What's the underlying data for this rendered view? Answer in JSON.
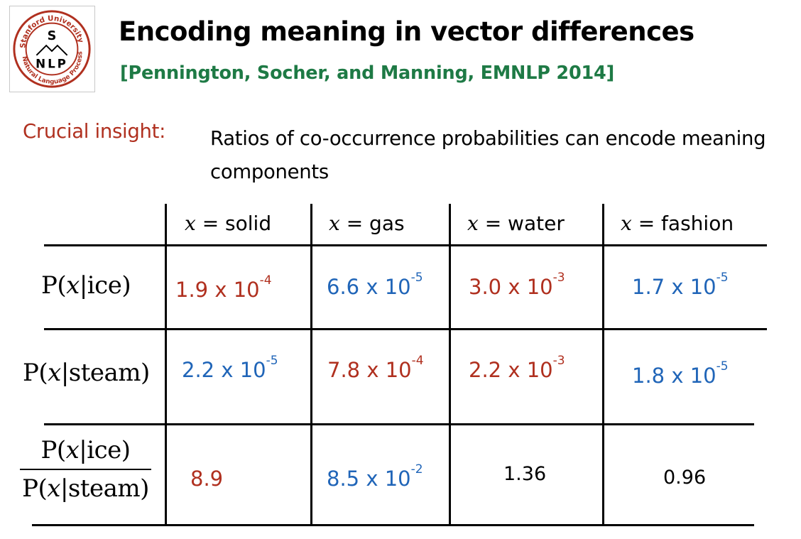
{
  "logo": {
    "ring_text": "Stanford University · Natural Language Processing",
    "top_letter": "S",
    "bottom_letters": "NLP",
    "color": "#b0301f"
  },
  "title": "Encoding meaning in vector differences",
  "citation": "[Pennington, Socher, and Manning, EMNLP 2014]",
  "insight": {
    "label": "Crucial insight:",
    "text": "Ratios of co-occurrence probabilities can encode meaning components"
  },
  "table": {
    "headers": [
      {
        "var": "x",
        "text": " = solid"
      },
      {
        "var": "x",
        "text": " = gas"
      },
      {
        "var": "x",
        "text": " = water"
      },
      {
        "var": "x",
        "text": " = fashion"
      }
    ],
    "rows": [
      {
        "label_prefix": "P(",
        "label_var": "x",
        "label_suffix": "|ice)",
        "cells": [
          {
            "mantissa": "1.9 x 10",
            "exp": "-4",
            "color": "red"
          },
          {
            "mantissa": "6.6 x 10",
            "exp": "-5",
            "color": "blue"
          },
          {
            "mantissa": "3.0 x 10",
            "exp": "-3",
            "color": "red"
          },
          {
            "mantissa": "1.7 x 10",
            "exp": "-5",
            "color": "blue"
          }
        ]
      },
      {
        "label_prefix": "P(",
        "label_var": "x",
        "label_suffix": "|steam)",
        "cells": [
          {
            "mantissa": "2.2 x 10",
            "exp": "-5",
            "color": "blue"
          },
          {
            "mantissa": "7.8 x 10",
            "exp": "-4",
            "color": "red"
          },
          {
            "mantissa": "2.2 x 10",
            "exp": "-3",
            "color": "red"
          },
          {
            "mantissa": "1.8 x 10",
            "exp": "-5",
            "color": "blue"
          }
        ]
      },
      {
        "label_num_prefix": "P(",
        "label_num_var": "x",
        "label_num_suffix": "|ice)",
        "label_den_prefix": "P(",
        "label_den_var": "x",
        "label_den_suffix": "|steam)",
        "cells": [
          {
            "mantissa": "8.9",
            "exp": "",
            "color": "red"
          },
          {
            "mantissa": "8.5 x 10",
            "exp": "-2",
            "color": "blue"
          },
          {
            "mantissa": "1.36",
            "exp": "",
            "color": "black"
          },
          {
            "mantissa": "0.96",
            "exp": "",
            "color": "black"
          }
        ]
      }
    ]
  },
  "colors": {
    "red": "#b0301f",
    "blue": "#2065b8",
    "green": "#1e7a45"
  }
}
